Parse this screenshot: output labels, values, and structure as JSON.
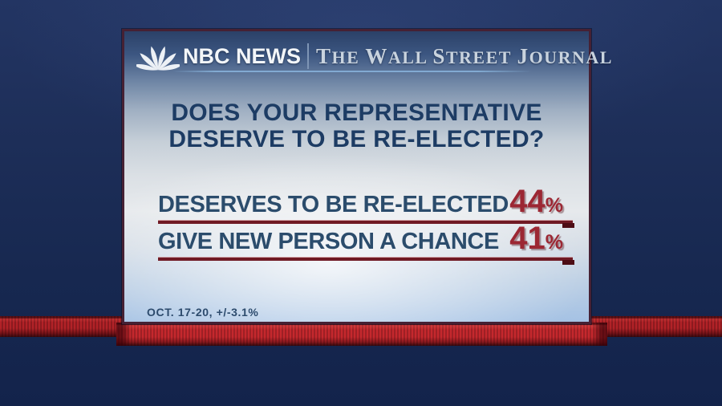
{
  "brand": {
    "nbc_name": "NBC NEWS",
    "wsj_name": "THE WALL STREET JOURNAL",
    "peacock_icon": "nbc-peacock"
  },
  "question": {
    "line1": "DOES YOUR REPRESENTATIVE",
    "line2": "DESERVE TO BE RE-ELECTED?"
  },
  "results": [
    {
      "label": "DESERVES TO BE RE-ELECTED",
      "value": "44",
      "unit": "%"
    },
    {
      "label": "GIVE NEW PERSON A CHANCE",
      "value": "41",
      "unit": "%"
    }
  ],
  "footnote": "OCT. 17-20, +/-3.1%",
  "colors": {
    "background_navy": "#1c2c55",
    "panel_border": "#462134",
    "question_text": "#1d3c64",
    "label_text": "#2b4c6c",
    "value_red": "#9c2733",
    "rule_maroon": "#701a24",
    "beam_red": "#b22227",
    "pedestal_red": "#c5282d",
    "nbc_white": "#f2f5f8",
    "wsj_silver": "#c9d3de"
  },
  "chart_data": {
    "type": "table",
    "title": "DOES YOUR REPRESENTATIVE DESERVE TO BE RE-ELECTED?",
    "categories": [
      "DESERVES TO BE RE-ELECTED",
      "GIVE NEW PERSON A CHANCE"
    ],
    "values": [
      44,
      41
    ],
    "unit": "%",
    "field_dates": "OCT. 17-20",
    "margin_of_error": "+/-3.1%",
    "source_branding": "NBC NEWS | THE WALL STREET JOURNAL"
  }
}
